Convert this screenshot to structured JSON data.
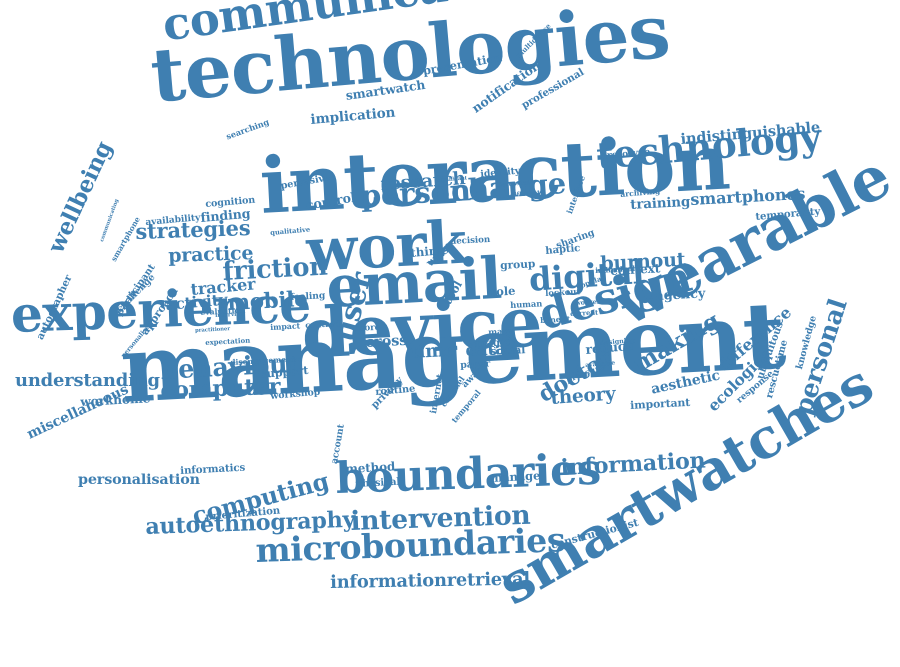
{
  "color": "#3f7fb1",
  "words": [
    "communication",
    "technologies",
    "wellbeing",
    "interaction",
    "technology",
    "experience",
    "email",
    "work",
    "wearable",
    "design",
    "device",
    "management",
    "smartwatches",
    "boundaries",
    "microboundaries",
    "autoethnography",
    "intervention",
    "informationretrieval",
    "computing",
    "personalisation",
    "information",
    "personal",
    "digital",
    "friction",
    "behaviour",
    "understanding",
    "computer",
    "strategies",
    "practice",
    "mobile",
    "person",
    "change",
    "research",
    "burnout",
    "smartphones",
    "indistinguishable",
    "training",
    "temporality",
    "making",
    "aesthetic",
    "difference",
    "ecologies",
    "theory",
    "important",
    "reduce",
    "doctor",
    "time",
    "cross",
    "data",
    "user",
    "context",
    "agency",
    "individual",
    "tracker",
    "activity",
    "approach",
    "participant",
    "autographer",
    "miscellaneous",
    "workhome",
    "support",
    "workshop",
    "informatics",
    "prioritization",
    "manage",
    "method",
    "physical",
    "account",
    "routine",
    "privacy",
    "internet",
    "social",
    "paper",
    "magic",
    "more",
    "control",
    "pervasive",
    "cognition",
    "finding",
    "availability",
    "implication",
    "smartwatch",
    "presentation",
    "notification",
    "multidevice",
    "professional",
    "searching",
    "identity",
    "prototype",
    "archiving",
    "discussion",
    "sharing",
    "interface",
    "response",
    "ubiquitous",
    "rescuetime",
    "knowledge",
    "constructionist",
    "smartphone",
    "challenge",
    "evaluation",
    "tool",
    "role",
    "human",
    "lockout",
    "popular",
    "worker",
    "current",
    "haptic",
    "thing",
    "wrist",
    "decision",
    "channel",
    "temporal",
    "many",
    "aware",
    "pressure",
    "available",
    "interview",
    "impact",
    "centred",
    "different",
    "significant",
    "disengagement",
    "expectation",
    "practitioner",
    "personalised",
    "communicating",
    "qualitative",
    "group",
    "feeling",
    "benefit",
    "designing"
  ]
}
